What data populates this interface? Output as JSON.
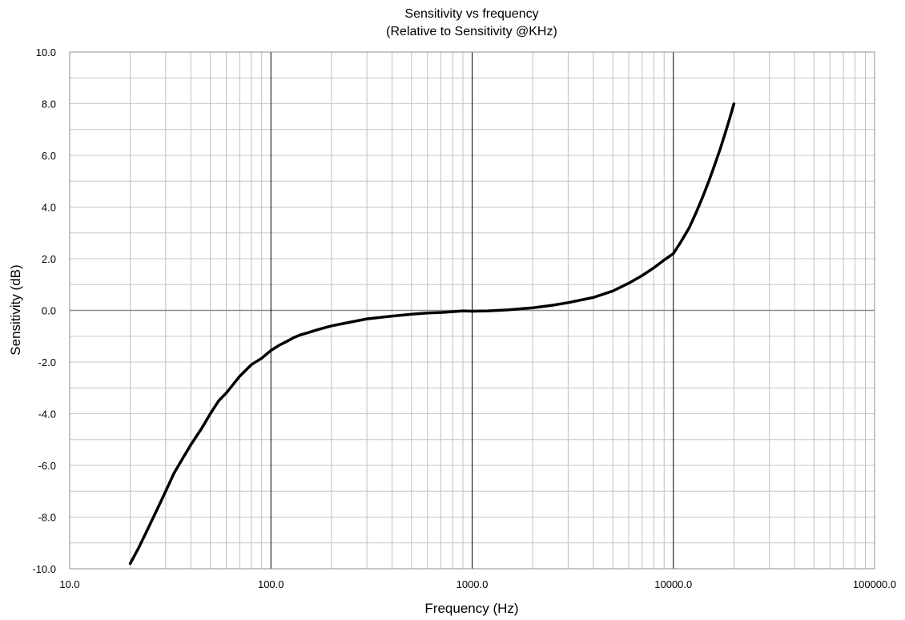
{
  "chart_data": {
    "type": "line",
    "title": "Sensitivity vs frequency",
    "subtitle": "(Relative to Sensitivity @KHz)",
    "xlabel": "Frequency (Hz)",
    "ylabel": "Sensitivity (dB)",
    "x_scale": "log",
    "xlim": [
      10,
      100000
    ],
    "ylim": [
      -10,
      10
    ],
    "x_ticks": [
      "10.0",
      "100.0",
      "1000.0",
      "10000.0",
      "100000.0"
    ],
    "y_ticks": [
      "10.0",
      "8.0",
      "6.0",
      "4.0",
      "2.0",
      "0.0",
      "-2.0",
      "-4.0",
      "-6.0",
      "-8.0",
      "-10.0"
    ],
    "grid": true,
    "series": [
      {
        "color": "#000000",
        "x": [
          20,
          22,
          25,
          28,
          30,
          33,
          36,
          40,
          45,
          50,
          55,
          60,
          70,
          80,
          90,
          100,
          110,
          120,
          130,
          140,
          150,
          170,
          200,
          250,
          300,
          400,
          500,
          600,
          700,
          800,
          900,
          1000,
          1200,
          1500,
          2000,
          2500,
          3000,
          4000,
          5000,
          6000,
          7000,
          8000,
          9000,
          10000,
          11000,
          12000,
          13000,
          14000,
          15000,
          16000,
          17000,
          18000,
          19000,
          20000
        ],
        "y": [
          -9.8,
          -9.2,
          -8.3,
          -7.5,
          -7.0,
          -6.3,
          -5.8,
          -5.2,
          -4.6,
          -4.0,
          -3.5,
          -3.2,
          -2.55,
          -2.1,
          -1.85,
          -1.55,
          -1.35,
          -1.2,
          -1.05,
          -0.95,
          -0.88,
          -0.75,
          -0.6,
          -0.45,
          -0.33,
          -0.22,
          -0.15,
          -0.1,
          -0.08,
          -0.05,
          -0.02,
          -0.03,
          -0.02,
          0.02,
          0.1,
          0.2,
          0.3,
          0.5,
          0.75,
          1.05,
          1.35,
          1.65,
          1.95,
          2.2,
          2.7,
          3.2,
          3.8,
          4.4,
          5.0,
          5.6,
          6.2,
          6.8,
          7.4,
          8.0
        ]
      }
    ]
  }
}
